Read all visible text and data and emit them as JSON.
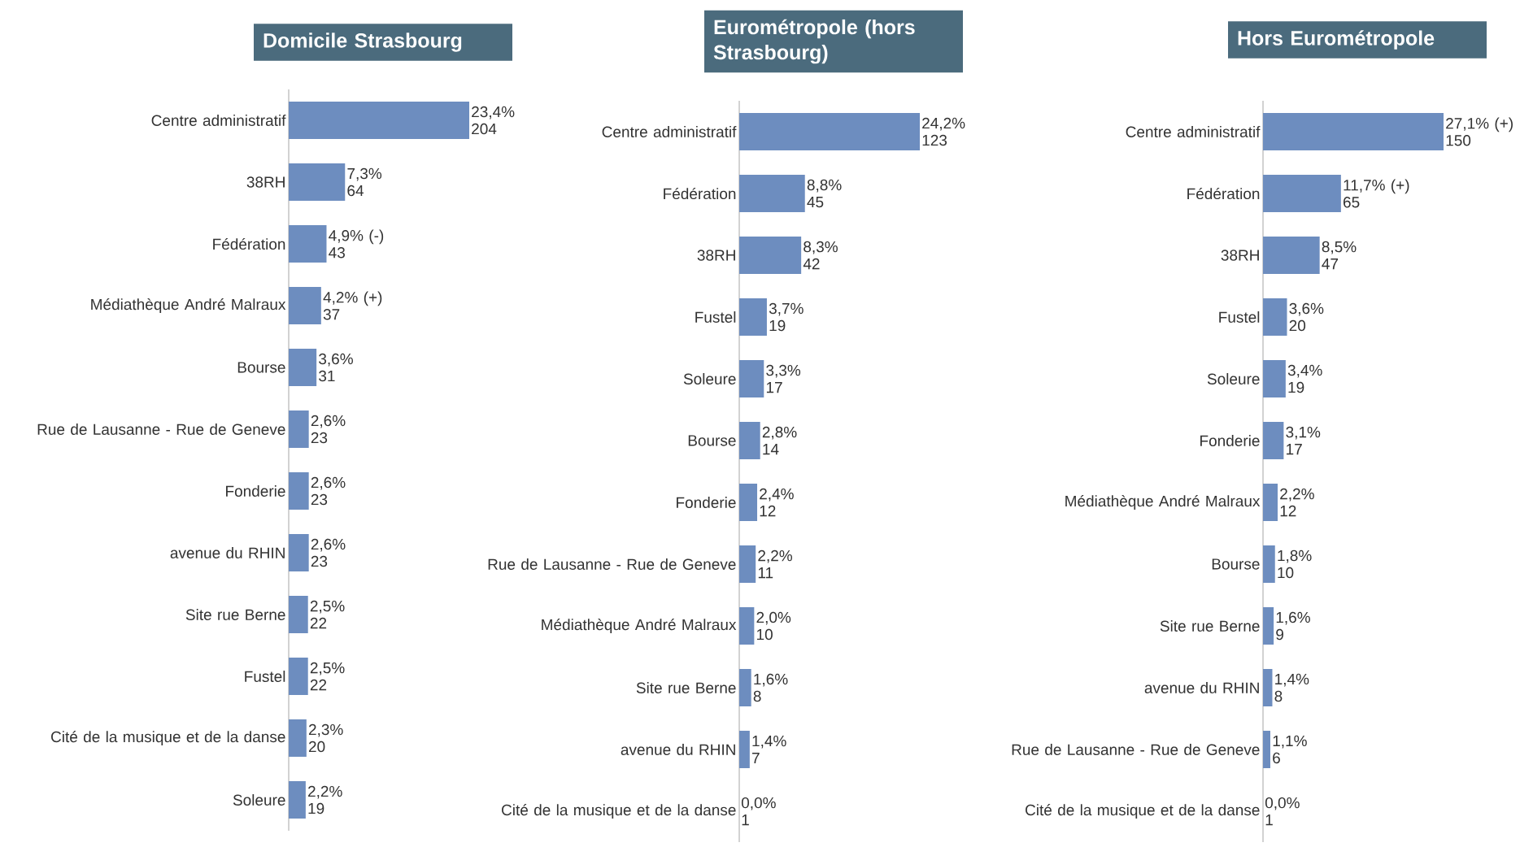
{
  "chart_data": [
    {
      "type": "bar",
      "orientation": "horizontal",
      "title": "Domicile Strasbourg",
      "color": "#6d8dbf",
      "categories": [
        "Centre administratif",
        "38RH",
        "Fédération",
        "Médiathèque André Malraux",
        "Bourse",
        "Rue de Lausanne - Rue de Geneve",
        "Fonderie",
        "avenue du RHIN",
        "Site rue Berne",
        "Fustel",
        "Cité de la musique et de la danse",
        "Soleure"
      ],
      "values": [
        23.4,
        7.3,
        4.9,
        4.2,
        3.6,
        2.6,
        2.6,
        2.6,
        2.5,
        2.5,
        2.3,
        2.2
      ],
      "value_labels": [
        "23,4% 204",
        "7,3% 64",
        "4,9% (-) 43",
        "4,2% (+) 37",
        "3,6% 31",
        "2,6% 23",
        "2,6% 23",
        "2,6% 23",
        "2,5% 22",
        "2,5% 22",
        "2,3% 20",
        "2,2% 19"
      ]
    },
    {
      "type": "bar",
      "orientation": "horizontal",
      "title": "Eurométropole (hors Strasbourg)",
      "color": "#6d8dbf",
      "categories": [
        "Centre administratif",
        "Fédération",
        "38RH",
        "Fustel",
        "Soleure",
        "Bourse",
        "Fonderie",
        "Rue de Lausanne - Rue de Geneve",
        "Médiathèque André Malraux",
        "Site rue Berne",
        "avenue du RHIN",
        "Cité de la musique et de la danse"
      ],
      "values": [
        24.2,
        8.8,
        8.3,
        3.7,
        3.3,
        2.8,
        2.4,
        2.2,
        2.0,
        1.6,
        1.4,
        0.0
      ],
      "value_labels": [
        "24,2% 123",
        "8,8% 45",
        "8,3% 42",
        "3,7% 19",
        "3,3% 17",
        "2,8% 14",
        "2,4% 12",
        "2,2% 11",
        "2,0% 10",
        "1,6% 8",
        "1,4% 7",
        "0,0% 1"
      ]
    },
    {
      "type": "bar",
      "orientation": "horizontal",
      "title": "Hors Eurométropole",
      "color": "#6d8dbf",
      "categories": [
        "Centre administratif",
        "Fédération",
        "38RH",
        "Fustel",
        "Soleure",
        "Fonderie",
        "Médiathèque André Malraux",
        "Bourse",
        "Site rue Berne",
        "avenue du RHIN",
        "Rue de Lausanne - Rue de Geneve",
        "Cité de la musique et de la danse"
      ],
      "values": [
        27.1,
        11.7,
        8.5,
        3.6,
        3.4,
        3.1,
        2.2,
        1.8,
        1.6,
        1.4,
        1.1,
        0.0
      ],
      "value_labels": [
        "27,1% (+) 150",
        "11,7% (+) 65",
        "8,5% 47",
        "3,6% 20",
        "3,4% 19",
        "3,1% 17",
        "2,2% 12",
        "1,8% 10",
        "1,6% 9",
        "1,4% 8",
        "1,1% 6",
        "0,0% 1"
      ]
    }
  ]
}
